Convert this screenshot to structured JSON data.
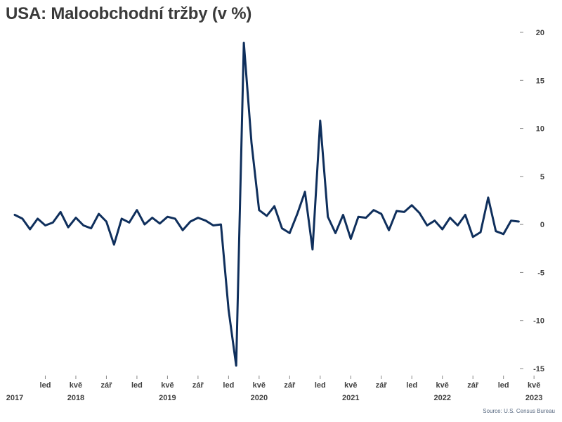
{
  "title": "USA: Maloobchodní tržby (v %)",
  "source": "Source: U.S. Census Bureau",
  "chart_data": {
    "type": "line",
    "title": "USA: Maloobchodní tržby (v %)",
    "xlabel": "",
    "ylabel": "",
    "ylim": [
      -15,
      20
    ],
    "yticks": [
      20,
      15,
      10,
      5,
      0,
      -5,
      -10,
      -15
    ],
    "y_axis_side": "right",
    "grid": false,
    "line_color": "#0f2f5c",
    "x_start": "2017-09",
    "month_ticks": [
      {
        "label": "led",
        "index": 4
      },
      {
        "label": "kvě",
        "index": 8
      },
      {
        "label": "zář",
        "index": 12
      },
      {
        "label": "led",
        "index": 16
      },
      {
        "label": "kvě",
        "index": 20
      },
      {
        "label": "zář",
        "index": 24
      },
      {
        "label": "led",
        "index": 28
      },
      {
        "label": "kvě",
        "index": 32
      },
      {
        "label": "zář",
        "index": 36
      },
      {
        "label": "led",
        "index": 40
      },
      {
        "label": "kvě",
        "index": 44
      },
      {
        "label": "zář",
        "index": 48
      },
      {
        "label": "led",
        "index": 52
      },
      {
        "label": "kvě",
        "index": 56
      },
      {
        "label": "zář",
        "index": 60
      },
      {
        "label": "led",
        "index": 64
      },
      {
        "label": "kvě",
        "index": 68
      }
    ],
    "year_labels": [
      {
        "label": "2017",
        "index": 0
      },
      {
        "label": "2018",
        "index": 8
      },
      {
        "label": "2019",
        "index": 20
      },
      {
        "label": "2020",
        "index": 32
      },
      {
        "label": "2021",
        "index": 44
      },
      {
        "label": "2022",
        "index": 56
      },
      {
        "label": "2023",
        "index": 68
      }
    ],
    "series": [
      {
        "values": [
          1.0,
          0.6,
          -0.5,
          0.6,
          -0.1,
          0.2,
          1.3,
          -0.3,
          0.7,
          -0.1,
          -0.4,
          1.1,
          0.3,
          -2.1,
          0.6,
          0.2,
          1.5,
          0.0,
          0.7,
          0.1,
          0.8,
          0.6,
          -0.6,
          0.3,
          0.7,
          0.4,
          -0.1,
          0.0,
          -8.9,
          -14.7,
          18.9,
          8.5,
          1.5,
          0.9,
          1.9,
          -0.4,
          -0.9,
          1.1,
          3.4,
          -2.6,
          10.8,
          0.8,
          -0.9,
          1.0,
          -1.5,
          0.8,
          0.7,
          1.5,
          1.1,
          -0.6,
          1.4,
          1.3,
          2.0,
          1.2,
          -0.1,
          0.4,
          -0.5,
          0.7,
          -0.1,
          1.0,
          -1.3,
          -0.8,
          2.8,
          -0.7,
          -1.0,
          0.4,
          0.3
        ]
      }
    ]
  }
}
